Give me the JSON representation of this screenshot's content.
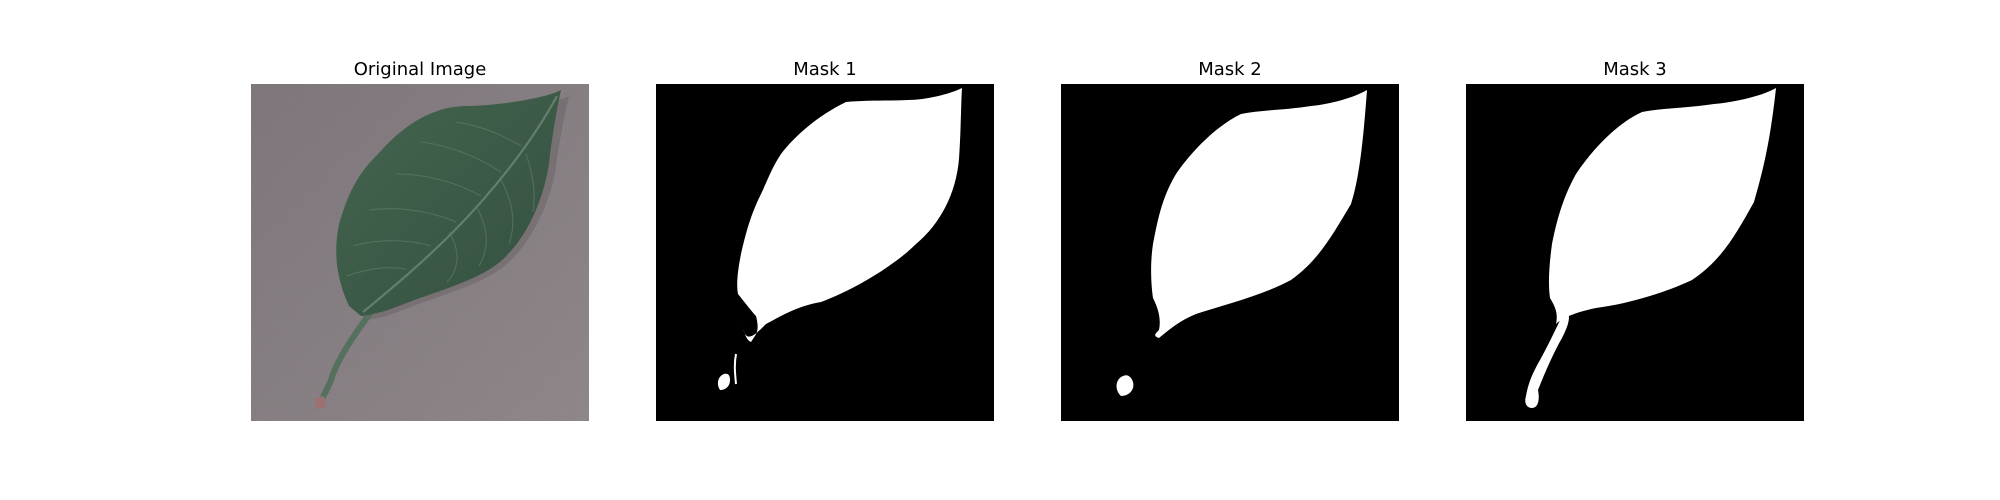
{
  "figure": {
    "panels": [
      {
        "title": "Original Image"
      },
      {
        "title": "Mask 1"
      },
      {
        "title": "Mask 2"
      },
      {
        "title": "Mask 3"
      }
    ]
  },
  "colors": {
    "background": "#ffffff",
    "mask_background": "#000000",
    "mask_foreground": "#ffffff",
    "surface_gray": "#8a8387",
    "leaf_green": "#3e5e4b",
    "leaf_vein": "#6b8673",
    "stem_tip": "#9a7275"
  }
}
